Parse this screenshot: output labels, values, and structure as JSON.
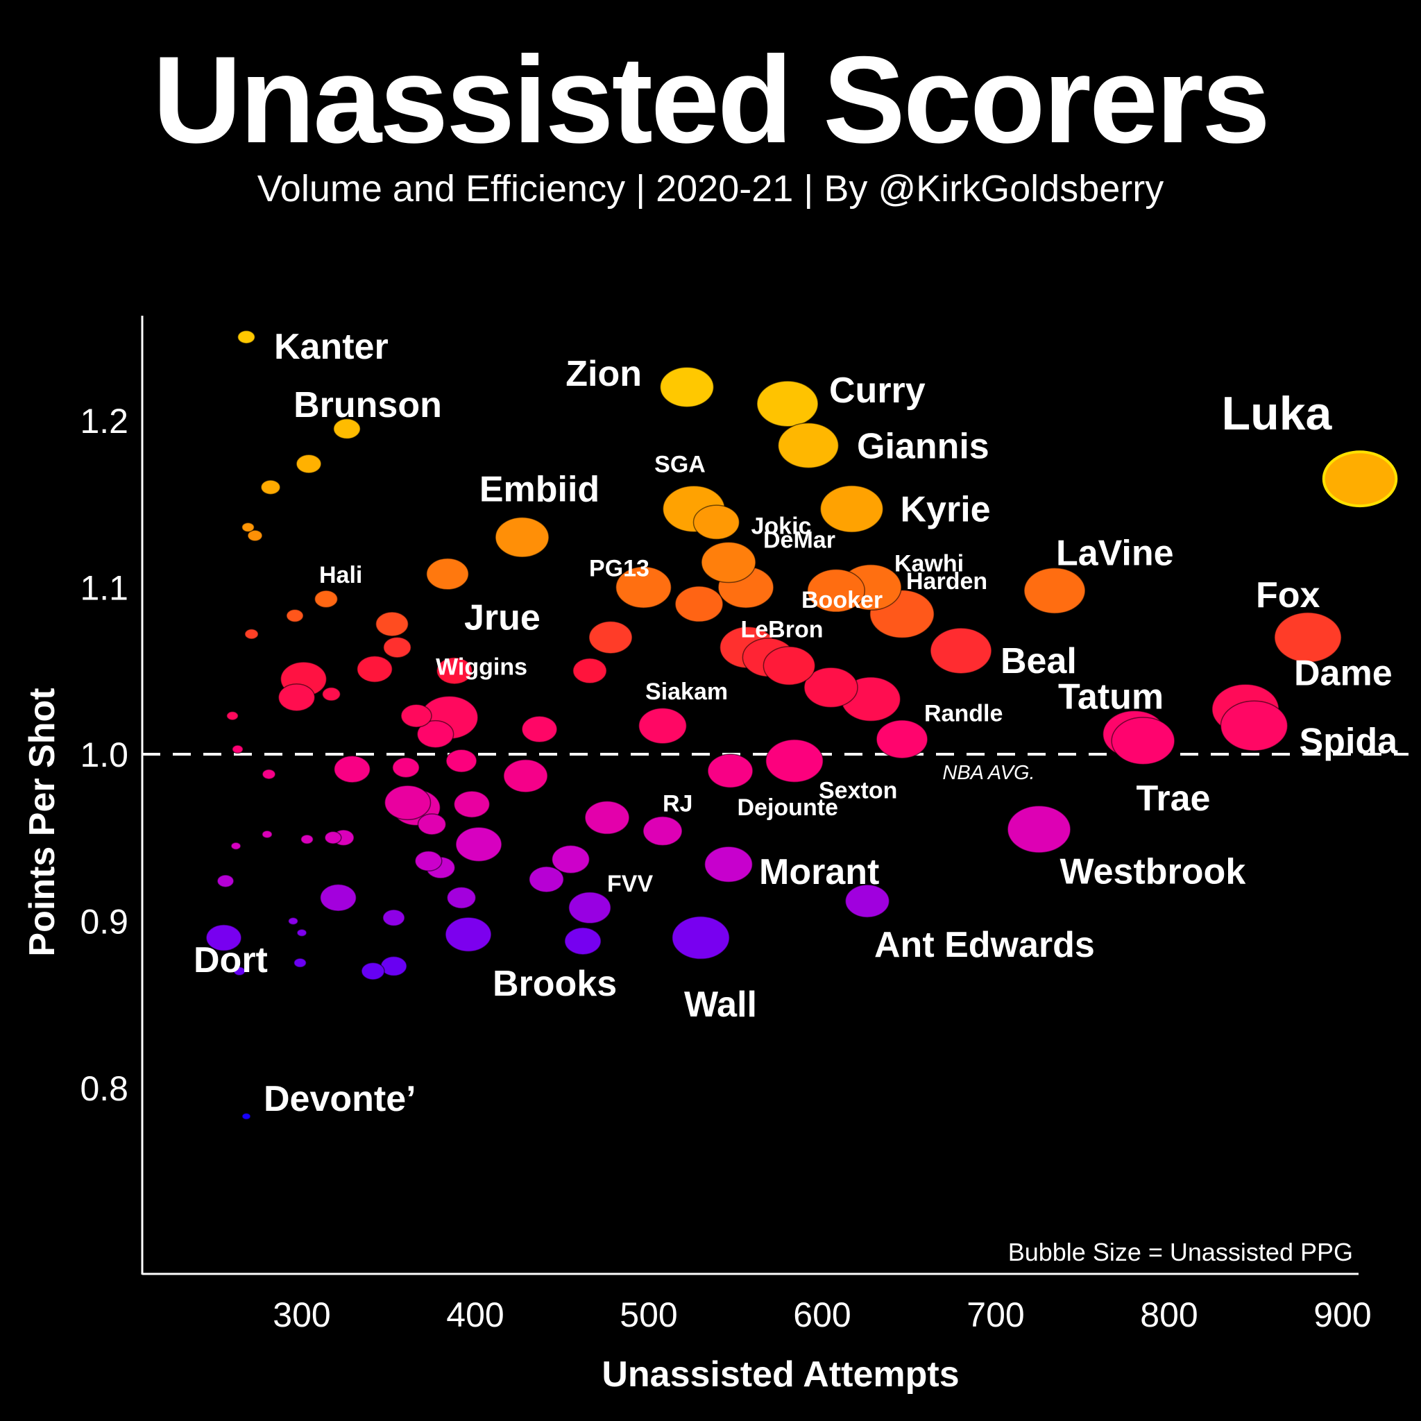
{
  "header": {
    "title": "Unassisted Scorers",
    "subtitle": "Volume and Efficiency | 2020-21 | By @KirkGoldsberry"
  },
  "chart_data": {
    "type": "scatter",
    "title": "Unassisted Scorers",
    "subtitle": "Volume and Efficiency | 2020-21 | By @KirkGoldsberry",
    "xlabel": "Unassisted Attempts",
    "ylabel": "Points Per Shot",
    "xlim": [
      210,
      910
    ],
    "ylim": [
      0.7,
      1.25
    ],
    "xticks": [
      "300",
      "400",
      "500",
      "600",
      "700",
      "800",
      "900"
    ],
    "yticks": [
      "0.8",
      "0.9",
      "1.0",
      "1.1",
      "1.2"
    ],
    "size_note": "Bubble Size = Unassisted PPG",
    "reference_line": {
      "y": 1.0,
      "label": "NBA AVG."
    },
    "colors": {
      "high": "#ffc700",
      "mid": "#ff0a6a",
      "low": "#1a00ff"
    },
    "points": [
      {
        "x": 910,
        "y": 1.165,
        "size": 19.0,
        "label": "Luka"
      },
      {
        "x": 522,
        "y": 1.22,
        "size": 14.0,
        "label": "Zion"
      },
      {
        "x": 580,
        "y": 1.21,
        "size": 16.0,
        "label": "Curry"
      },
      {
        "x": 592,
        "y": 1.185,
        "size": 15.8,
        "label": "Giannis"
      },
      {
        "x": 617,
        "y": 1.147,
        "size": 16.4,
        "label": "Kyrie"
      },
      {
        "x": 526,
        "y": 1.147,
        "size": 16.2,
        "label": "SGA"
      },
      {
        "x": 539,
        "y": 1.139,
        "size": 12.0,
        "label": "Jokic"
      },
      {
        "x": 546,
        "y": 1.115,
        "size": 14.2,
        "label": "DeMar"
      },
      {
        "x": 427,
        "y": 1.13,
        "size": 14.0,
        "label": "Embiid"
      },
      {
        "x": 497,
        "y": 1.1,
        "size": 14.5,
        "label": "PG13"
      },
      {
        "x": 556,
        "y": 1.1,
        "size": 14.5,
        "label": ""
      },
      {
        "x": 529,
        "y": 1.09,
        "size": 12.5,
        "label": "LeBron"
      },
      {
        "x": 608,
        "y": 1.098,
        "size": 15.0,
        "label": "Booker"
      },
      {
        "x": 628,
        "y": 1.1,
        "size": 16.0,
        "label": "Kawhi"
      },
      {
        "x": 646,
        "y": 1.084,
        "size": 16.8,
        "label": "Harden"
      },
      {
        "x": 734,
        "y": 1.098,
        "size": 16.0,
        "label": "LaVine"
      },
      {
        "x": 384,
        "y": 1.108,
        "size": 11.0,
        "label": "Jrue"
      },
      {
        "x": 880,
        "y": 1.07,
        "size": 17.5,
        "label": "Fox"
      },
      {
        "x": 680,
        "y": 1.062,
        "size": 16.0,
        "label": "Beal"
      },
      {
        "x": 557,
        "y": 1.064,
        "size": 14.5,
        "label": ""
      },
      {
        "x": 569,
        "y": 1.058,
        "size": 13.5,
        "label": ""
      },
      {
        "x": 581,
        "y": 1.053,
        "size": 13.5,
        "label": ""
      },
      {
        "x": 478,
        "y": 1.07,
        "size": 11.3,
        "label": "Wiggins"
      },
      {
        "x": 605,
        "y": 1.04,
        "size": 14.0,
        "label": ""
      },
      {
        "x": 628,
        "y": 1.033,
        "size": 15.5,
        "label": ""
      },
      {
        "x": 844,
        "y": 1.027,
        "size": 17.5,
        "label": "Dame"
      },
      {
        "x": 849,
        "y": 1.017,
        "size": 17.5,
        "label": "Spida"
      },
      {
        "x": 780,
        "y": 1.012,
        "size": 16.5,
        "label": "Tatum"
      },
      {
        "x": 785,
        "y": 1.008,
        "size": 16.5,
        "label": "Trae"
      },
      {
        "x": 646,
        "y": 1.009,
        "size": 13.4,
        "label": "Randle"
      },
      {
        "x": 508,
        "y": 1.017,
        "size": 12.5,
        "label": "Siakam"
      },
      {
        "x": 584,
        "y": 0.996,
        "size": 15.0,
        "label": "Sexton"
      },
      {
        "x": 547,
        "y": 0.99,
        "size": 11.8,
        "label": "Dejounte"
      },
      {
        "x": 725,
        "y": 0.955,
        "size": 16.5,
        "label": "Westbrook"
      },
      {
        "x": 546,
        "y": 0.934,
        "size": 12.5,
        "label": "Morant"
      },
      {
        "x": 508,
        "y": 0.954,
        "size": 10.2,
        "label": "RJ"
      },
      {
        "x": 476,
        "y": 0.962,
        "size": 11.6,
        "label": ""
      },
      {
        "x": 466,
        "y": 0.908,
        "size": 11.0,
        "label": "FVV"
      },
      {
        "x": 626,
        "y": 0.912,
        "size": 11.5,
        "label": "Ant Edwards"
      },
      {
        "x": 530,
        "y": 0.89,
        "size": 15.0,
        "label": "Wall"
      },
      {
        "x": 396,
        "y": 0.892,
        "size": 12.0,
        "label": "Brooks"
      },
      {
        "x": 264,
        "y": 0.87,
        "size": 3.0,
        "label": "Dort"
      },
      {
        "x": 268,
        "y": 0.783,
        "size": 2.2,
        "label": "Devonte’"
      },
      {
        "x": 268,
        "y": 1.25,
        "size": 4.5,
        "label": "Kanter"
      },
      {
        "x": 326,
        "y": 1.195,
        "size": 7.0,
        "label": "Brunson"
      },
      {
        "x": 314,
        "y": 1.093,
        "size": 6.0,
        "label": "Hali"
      },
      {
        "x": 304,
        "y": 1.174,
        "size": 6.5,
        "label": ""
      },
      {
        "x": 282,
        "y": 1.16,
        "size": 5.0,
        "label": ""
      },
      {
        "x": 269,
        "y": 1.136,
        "size": 3.2,
        "label": ""
      },
      {
        "x": 273,
        "y": 1.131,
        "size": 3.8,
        "label": ""
      },
      {
        "x": 296,
        "y": 1.083,
        "size": 4.4,
        "label": ""
      },
      {
        "x": 271,
        "y": 1.072,
        "size": 3.5,
        "label": ""
      },
      {
        "x": 352,
        "y": 1.078,
        "size": 8.5,
        "label": ""
      },
      {
        "x": 355,
        "y": 1.064,
        "size": 7.2,
        "label": ""
      },
      {
        "x": 342,
        "y": 1.051,
        "size": 9.2,
        "label": ""
      },
      {
        "x": 388,
        "y": 1.05,
        "size": 9.3,
        "label": ""
      },
      {
        "x": 301,
        "y": 1.045,
        "size": 12.0,
        "label": ""
      },
      {
        "x": 297,
        "y": 1.034,
        "size": 9.5,
        "label": ""
      },
      {
        "x": 317,
        "y": 1.036,
        "size": 4.7,
        "label": ""
      },
      {
        "x": 466,
        "y": 1.05,
        "size": 8.8,
        "label": ""
      },
      {
        "x": 385,
        "y": 1.022,
        "size": 15.0,
        "label": ""
      },
      {
        "x": 366,
        "y": 1.023,
        "size": 8.0,
        "label": ""
      },
      {
        "x": 377,
        "y": 1.012,
        "size": 9.5,
        "label": ""
      },
      {
        "x": 437,
        "y": 1.015,
        "size": 9.2,
        "label": ""
      },
      {
        "x": 260,
        "y": 1.023,
        "size": 3.0,
        "label": ""
      },
      {
        "x": 263,
        "y": 1.003,
        "size": 2.8,
        "label": ""
      },
      {
        "x": 392,
        "y": 0.996,
        "size": 8.0,
        "label": ""
      },
      {
        "x": 329,
        "y": 0.991,
        "size": 9.4,
        "label": ""
      },
      {
        "x": 360,
        "y": 0.992,
        "size": 7.0,
        "label": ""
      },
      {
        "x": 429,
        "y": 0.987,
        "size": 11.5,
        "label": ""
      },
      {
        "x": 281,
        "y": 0.988,
        "size": 3.4,
        "label": ""
      },
      {
        "x": 361,
        "y": 0.971,
        "size": 12.0,
        "label": ""
      },
      {
        "x": 366,
        "y": 0.968,
        "size": 12.5,
        "label": ""
      },
      {
        "x": 398,
        "y": 0.97,
        "size": 9.3,
        "label": ""
      },
      {
        "x": 375,
        "y": 0.958,
        "size": 7.3,
        "label": ""
      },
      {
        "x": 402,
        "y": 0.946,
        "size": 12.0,
        "label": ""
      },
      {
        "x": 262,
        "y": 0.945,
        "size": 2.5,
        "label": ""
      },
      {
        "x": 280,
        "y": 0.952,
        "size": 2.6,
        "label": ""
      },
      {
        "x": 303,
        "y": 0.949,
        "size": 3.2,
        "label": ""
      },
      {
        "x": 318,
        "y": 0.95,
        "size": 4.3,
        "label": ""
      },
      {
        "x": 324,
        "y": 0.95,
        "size": 5.5,
        "label": ""
      },
      {
        "x": 455,
        "y": 0.937,
        "size": 9.8,
        "label": ""
      },
      {
        "x": 373,
        "y": 0.936,
        "size": 7.0,
        "label": ""
      },
      {
        "x": 380,
        "y": 0.932,
        "size": 7.5,
        "label": ""
      },
      {
        "x": 441,
        "y": 0.925,
        "size": 9.0,
        "label": ""
      },
      {
        "x": 256,
        "y": 0.924,
        "size": 4.3,
        "label": ""
      },
      {
        "x": 321,
        "y": 0.914,
        "size": 9.4,
        "label": ""
      },
      {
        "x": 392,
        "y": 0.914,
        "size": 7.5,
        "label": ""
      },
      {
        "x": 353,
        "y": 0.902,
        "size": 5.7,
        "label": ""
      },
      {
        "x": 295,
        "y": 0.9,
        "size": 2.5,
        "label": ""
      },
      {
        "x": 300,
        "y": 0.893,
        "size": 2.5,
        "label": ""
      },
      {
        "x": 255,
        "y": 0.89,
        "size": 9.2,
        "label": ""
      },
      {
        "x": 462,
        "y": 0.888,
        "size": 9.5,
        "label": ""
      },
      {
        "x": 299,
        "y": 0.875,
        "size": 3.2,
        "label": ""
      },
      {
        "x": 341,
        "y": 0.87,
        "size": 6.0,
        "label": ""
      },
      {
        "x": 353,
        "y": 0.873,
        "size": 6.8,
        "label": ""
      }
    ]
  }
}
